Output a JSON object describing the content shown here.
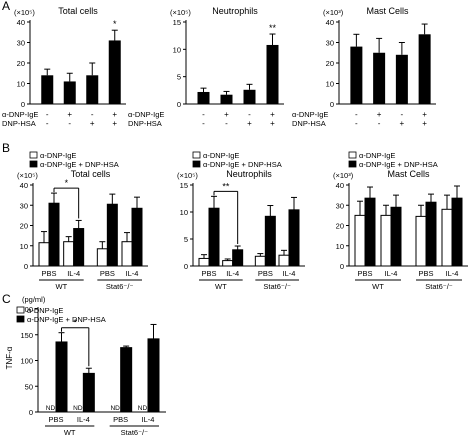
{
  "chart_data": [
    {
      "id": "A1",
      "panel_label": "A",
      "type": "bar",
      "title": "Total cells",
      "unit": "(×10⁵)",
      "ylim": [
        0,
        40
      ],
      "yticks": [
        "0",
        "10",
        "20",
        "30",
        "40"
      ],
      "row_labels": [
        "α-DNP-IgE",
        "DNP-HSA"
      ],
      "row_values": [
        [
          "-",
          "+",
          "-",
          "+"
        ],
        [
          "-",
          "-",
          "+",
          "+"
        ]
      ],
      "values": [
        14,
        11,
        14,
        31
      ],
      "errors": [
        3,
        4,
        6,
        5
      ],
      "significance": [
        {
          "bar": 3,
          "text": "*"
        }
      ]
    },
    {
      "id": "A2",
      "type": "bar",
      "title": "Neutrophils",
      "unit": "(×10⁵)",
      "ylim": [
        0,
        15
      ],
      "yticks": [
        "0",
        "5",
        "10",
        "15"
      ],
      "row_labels": [
        "α-DNP-IgE",
        "DNP-HSA"
      ],
      "row_values": [
        [
          "-",
          "+",
          "-",
          "+"
        ],
        [
          "-",
          "-",
          "+",
          "+"
        ]
      ],
      "values": [
        2.2,
        1.7,
        2.6,
        10.8
      ],
      "errors": [
        0.7,
        0.6,
        1.0,
        2.0
      ],
      "significance": [
        {
          "bar": 3,
          "text": "**"
        }
      ]
    },
    {
      "id": "A3",
      "type": "bar",
      "title": "Mast Cells",
      "unit": "(×10³)",
      "ylim": [
        0,
        40
      ],
      "yticks": [
        "0",
        "10",
        "20",
        "30",
        "40"
      ],
      "row_labels": [
        "α-DNP-IgE",
        "DNP-HSA"
      ],
      "row_values": [
        [
          "-",
          "+",
          "-",
          "+"
        ],
        [
          "-",
          "-",
          "+",
          "+"
        ]
      ],
      "values": [
        28,
        25,
        24,
        34
      ],
      "errors": [
        6,
        7,
        6,
        5
      ],
      "significance": []
    },
    {
      "id": "B1",
      "panel_label": "B",
      "type": "bar",
      "title": "Total cells",
      "unit": "(×10⁵)",
      "ylim": [
        0,
        40
      ],
      "yticks": [
        "0",
        "10",
        "20",
        "30",
        "40"
      ],
      "categories": [
        "PBS",
        "IL-4",
        "PBS",
        "IL-4"
      ],
      "groups": [
        "WT",
        "Stat6⁻/⁻"
      ],
      "series": [
        {
          "name": "α-DNP-IgE",
          "values": [
            11.5,
            12.0,
            8.5,
            12.0
          ],
          "errors": [
            5.5,
            2.5,
            3.5,
            4.5
          ]
        },
        {
          "name": "α-DNP-IgE + DNP-HSA",
          "values": [
            31,
            18.5,
            30.5,
            28.5
          ],
          "errors": [
            5,
            4,
            5,
            5.5
          ]
        }
      ],
      "comparison": {
        "from": 0,
        "to": 1,
        "text": "*"
      }
    },
    {
      "id": "B2",
      "type": "bar",
      "title": "Neutrophils",
      "unit": "(×10⁵)",
      "ylim": [
        0,
        15
      ],
      "yticks": [
        "0",
        "5",
        "10",
        "15"
      ],
      "categories": [
        "PBS",
        "IL-4",
        "PBS",
        "IL-4"
      ],
      "groups": [
        "WT",
        "Stat6⁻/⁻"
      ],
      "series": [
        {
          "name": "α-DNP-IgE",
          "values": [
            1.4,
            1.0,
            1.8,
            2.0
          ],
          "errors": [
            0.7,
            0.3,
            0.5,
            0.9
          ]
        },
        {
          "name": "α-DNP-IgE + DNP-HSA",
          "values": [
            10.7,
            3.0,
            9.2,
            10.4
          ],
          "errors": [
            2.2,
            0.7,
            2.0,
            2.3
          ]
        }
      ],
      "comparison": {
        "from": 0,
        "to": 1,
        "text": "**"
      }
    },
    {
      "id": "B3",
      "type": "bar",
      "title": "Mast Cells",
      "unit": "(×10³)",
      "ylim": [
        0,
        40
      ],
      "yticks": [
        "0",
        "10",
        "20",
        "30",
        "40"
      ],
      "categories": [
        "PBS",
        "IL-4",
        "PBS",
        "IL-4"
      ],
      "groups": [
        "WT",
        "Stat6⁻/⁻"
      ],
      "series": [
        {
          "name": "α-DNP-IgE",
          "values": [
            25,
            25,
            24.5,
            28
          ],
          "errors": [
            7,
            5,
            5.5,
            7
          ]
        },
        {
          "name": "α-DNP-IgE + DNP-HSA",
          "values": [
            33.5,
            29,
            31.5,
            33.5
          ],
          "errors": [
            5.5,
            6,
            4,
            6
          ]
        }
      ],
      "comparison": null
    },
    {
      "id": "C",
      "panel_label": "C",
      "type": "bar",
      "unit": "(pg/ml)",
      "ylabel": "TNF-α",
      "ylim": [
        0,
        200
      ],
      "yticks": [
        "0",
        "50",
        "100",
        "150",
        "200"
      ],
      "categories": [
        "PBS",
        "IL-4",
        "PBS",
        "IL-4"
      ],
      "groups": [
        "WT",
        "Stat6⁻/⁻"
      ],
      "series": [
        {
          "name": "α-DNP-IgE",
          "values": [
            null,
            null,
            null,
            null
          ],
          "errors": [
            0,
            0,
            0,
            0
          ],
          "labels": [
            "ND",
            "ND",
            "ND",
            "ND"
          ]
        },
        {
          "name": "α-DNP-IgE + DNP-HSA",
          "values": [
            136,
            75,
            125,
            142
          ],
          "errors": [
            18,
            10,
            3,
            28
          ]
        }
      ],
      "comparison": {
        "from": 0,
        "to": 1,
        "text": "*"
      }
    }
  ]
}
